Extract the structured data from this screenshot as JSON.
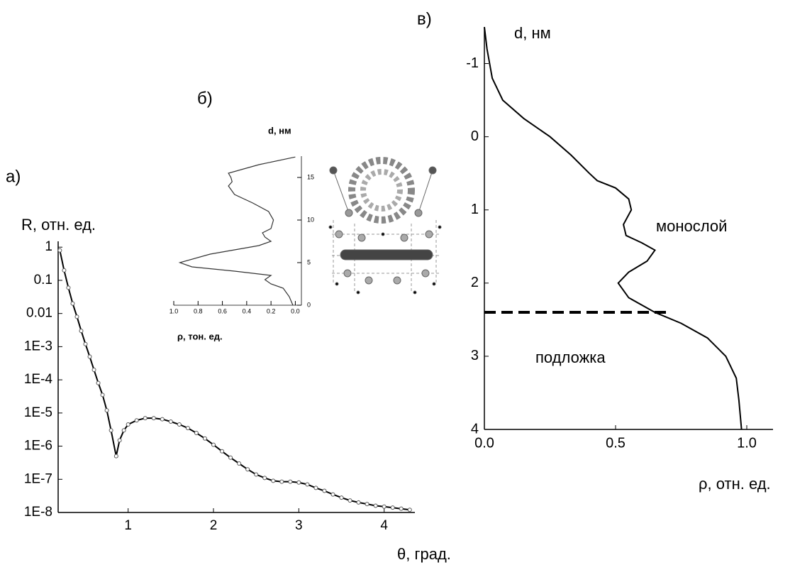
{
  "chart_data": [
    {
      "type": "line",
      "panel": "а)",
      "y_label": "R, отн. ед.",
      "x_label": "θ, град.",
      "y_scale": "log",
      "xlim": [
        0.18,
        4.36
      ],
      "ylim": [
        1e-08,
        1.5
      ],
      "xticks": [
        1,
        2,
        3,
        4
      ],
      "yticks": [
        1,
        0.1,
        0.01,
        {
          "value": 0.001,
          "label": "1E-3"
        },
        {
          "value": 0.0001,
          "label": "1E-4"
        },
        {
          "value": 1e-05,
          "label": "1E-5"
        },
        {
          "value": 1e-06,
          "label": "1E-6"
        },
        {
          "value": 1e-07,
          "label": "1E-7"
        },
        {
          "value": 1e-08,
          "label": "1E-8"
        }
      ],
      "color": "#000000",
      "markers": true,
      "x": [
        0.2,
        0.25,
        0.3,
        0.35,
        0.4,
        0.45,
        0.5,
        0.55,
        0.6,
        0.65,
        0.7,
        0.75,
        0.8,
        0.86,
        0.9,
        0.95,
        1.0,
        1.1,
        1.2,
        1.3,
        1.4,
        1.5,
        1.6,
        1.7,
        1.8,
        1.9,
        2.0,
        2.1,
        2.2,
        2.3,
        2.4,
        2.5,
        2.6,
        2.7,
        2.8,
        2.9,
        3.0,
        3.1,
        3.2,
        3.3,
        3.4,
        3.5,
        3.6,
        3.7,
        3.8,
        3.9,
        4.0,
        4.1,
        4.2,
        4.3
      ],
      "values": [
        0.8,
        0.2,
        0.06,
        0.02,
        0.008,
        0.003,
        0.0012,
        0.0005,
        0.0002,
        8e-05,
        3.5e-05,
        1.2e-05,
        3e-06,
        5e-07,
        1.5e-06,
        3e-06,
        4.5e-06,
        6e-06,
        7e-06,
        7e-06,
        6.5e-06,
        5.5e-06,
        4.5e-06,
        3.5e-06,
        2.5e-06,
        1.7e-06,
        1.1e-06,
        7e-07,
        4.5e-07,
        3e-07,
        2e-07,
        1.4e-07,
        1.1e-07,
        9e-08,
        8.5e-08,
        8.5e-08,
        8e-08,
        7e-08,
        5.5e-08,
        4.5e-08,
        3.5e-08,
        2.8e-08,
        2.3e-08,
        2e-08,
        1.8e-08,
        1.6e-08,
        1.5e-08,
        1.4e-08,
        1.3e-08,
        1.2e-08
      ]
    },
    {
      "type": "line",
      "panel": "б)",
      "y_label": "d, нм",
      "x_label": "ρ, тон. ед.",
      "xlim": [
        1.0,
        -0.05
      ],
      "ylim": [
        0,
        17.5
      ],
      "xticks": [
        {
          "value": 1.0,
          "label": "1.0"
        },
        0.8,
        0.6,
        0.4,
        0.2,
        {
          "value": 0.0,
          "label": "0.0"
        }
      ],
      "yticks": [
        0,
        5,
        10,
        15
      ],
      "color": "#333333",
      "x": [
        0.02,
        0.05,
        0.1,
        0.2,
        0.25,
        0.2,
        0.5,
        0.85,
        0.95,
        0.7,
        0.3,
        0.2,
        0.25,
        0.27,
        0.2,
        0.18,
        0.22,
        0.35,
        0.5,
        0.55,
        0.52,
        0.53,
        0.55,
        0.3,
        0
      ],
      "values": [
        0,
        1,
        2,
        2.5,
        3,
        3.5,
        4,
        4.5,
        5,
        6,
        7,
        7.5,
        8,
        8.5,
        9,
        10,
        11,
        12,
        13,
        14,
        14.5,
        15,
        15.5,
        16.5,
        17.4
      ]
    },
    {
      "type": "line",
      "panel": "в)",
      "y_label": "d, нм",
      "x_label": "ρ, отн. ед.",
      "xlim": [
        0,
        1.1
      ],
      "ylim": [
        4,
        -1.5
      ],
      "xticks": [
        {
          "value": 0,
          "label": "0.0"
        },
        0.5,
        {
          "value": 1,
          "label": "1.0"
        }
      ],
      "yticks": [
        -1,
        0,
        1,
        2,
        3,
        4
      ],
      "color": "#000000",
      "x": [
        0,
        0.01,
        0.03,
        0.07,
        0.15,
        0.25,
        0.33,
        0.4,
        0.43,
        0.5,
        0.55,
        0.56,
        0.53,
        0.54,
        0.6,
        0.65,
        0.62,
        0.55,
        0.51,
        0.55,
        0.65,
        0.75,
        0.85,
        0.92,
        0.96,
        0.97,
        0.98
      ],
      "values": [
        -1.5,
        -1.2,
        -0.8,
        -0.5,
        -0.25,
        0,
        0.25,
        0.5,
        0.6,
        0.7,
        0.85,
        1.0,
        1.2,
        1.35,
        1.45,
        1.55,
        1.7,
        1.85,
        2.0,
        2.2,
        2.4,
        2.55,
        2.75,
        3.0,
        3.3,
        3.6,
        4.0
      ],
      "reference_line": {
        "y": 2.4,
        "x": [
          0,
          0.7
        ]
      },
      "annotations": [
        "монослой",
        "подложка"
      ]
    }
  ]
}
